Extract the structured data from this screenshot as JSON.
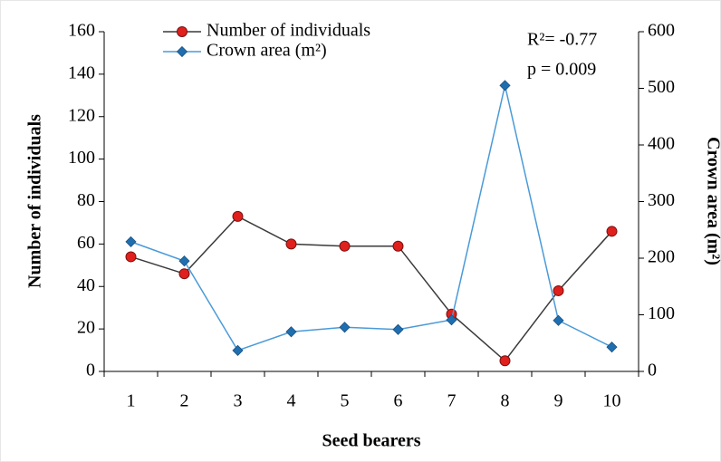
{
  "chart_data": {
    "type": "line",
    "x_label": "Seed bearers",
    "y_label": "Number  of individuals",
    "y2_label": "Crown  area (m²)",
    "annotations": [
      "R²= -0.77",
      "p = 0.009"
    ],
    "categories": [
      "1",
      "2",
      "3",
      "4",
      "5",
      "6",
      "7",
      "8",
      "9",
      "10"
    ],
    "series": [
      {
        "name": "Number of individuals",
        "color": "#3a3a3a",
        "marker_color": "#e0201c",
        "marker": "circle",
        "values": [
          54,
          46,
          73,
          60,
          59,
          59,
          27,
          5,
          38,
          66
        ]
      },
      {
        "name": "Crown area (m²)",
        "color": "#4a9ad8",
        "marker_color": "#1f6fb0",
        "marker": "diamond",
        "axis": "y2",
        "values": [
          229,
          195,
          37,
          70,
          78,
          74,
          91,
          505,
          90,
          43
        ]
      }
    ],
    "ylim": [
      0,
      160
    ],
    "yticks": [
      0,
      20,
      40,
      60,
      80,
      100,
      120,
      140,
      160
    ],
    "y2lim": [
      0,
      600
    ],
    "y2ticks": [
      0,
      100,
      200,
      300,
      400,
      500,
      600
    ],
    "legend": "top-left"
  }
}
